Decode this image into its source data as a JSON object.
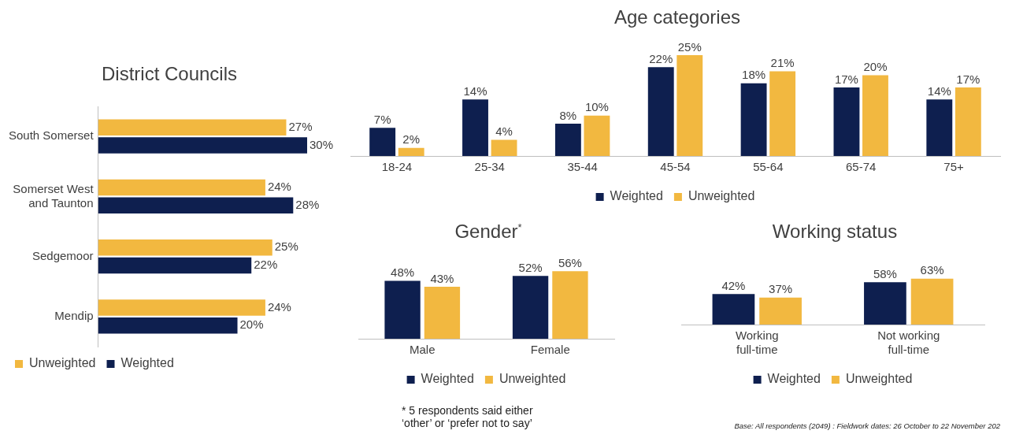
{
  "chart_data": [
    {
      "type": "bar",
      "title": "District Councils",
      "orientation": "horizontal",
      "categories": [
        "South Somerset",
        "Somerset West and Taunton",
        "Sedgemoor",
        "Mendip"
      ],
      "legend": "bottom",
      "series": [
        {
          "name": "Unweighted",
          "color": "#f2b840",
          "values": [
            27,
            24,
            25,
            24
          ],
          "value_labels": [
            "27%",
            "24%",
            "25%",
            "24%"
          ]
        },
        {
          "name": "Weighted",
          "color": "#0e1f4f",
          "values": [
            30,
            28,
            22,
            20
          ],
          "value_labels": [
            "30%",
            "28%",
            "22%",
            "20%"
          ]
        }
      ]
    },
    {
      "type": "bar",
      "title": "Age categories",
      "categories": [
        "18-24",
        "25-34",
        "35-44",
        "45-54",
        "55-64",
        "65-74",
        "75+"
      ],
      "legend": "bottom",
      "series": [
        {
          "name": "Weighted",
          "color": "#0e1f4f",
          "values": [
            7,
            14,
            8,
            22,
            18,
            17,
            14
          ],
          "value_labels": [
            "7%",
            "14%",
            "8%",
            "22%",
            "18%",
            "17%",
            "14%"
          ]
        },
        {
          "name": "Unweighted",
          "color": "#f2b840",
          "values": [
            2,
            4,
            10,
            25,
            21,
            20,
            17
          ],
          "value_labels": [
            "2%",
            "4%",
            "10%",
            "25%",
            "21%",
            "20%",
            "17%"
          ]
        }
      ]
    },
    {
      "type": "bar",
      "title": "Gender$^{*}$",
      "categories": [
        "Male",
        "Female"
      ],
      "legend": "bottom",
      "annotations": [
        "* 5 respondents said either ‘other’ or ‘prefer not to say’"
      ],
      "series": [
        {
          "name": "Weighted",
          "color": "#0e1f4f",
          "values": [
            48,
            52
          ],
          "value_labels": [
            "48%",
            "52%"
          ]
        },
        {
          "name": "Unweighted",
          "color": "#f2b840",
          "values": [
            43,
            56
          ],
          "value_labels": [
            "43%",
            "56%"
          ]
        }
      ]
    },
    {
      "type": "bar",
      "title": "Working status",
      "categories": [
        "Working full-time",
        "Not working full-time"
      ],
      "legend": "bottom",
      "annotations": [
        "Base: All respondents (2049) : Fieldwork dates: 26 October to 22 November 202"
      ],
      "series": [
        {
          "name": "Weighted",
          "color": "#0e1f4f",
          "values": [
            42,
            58
          ],
          "value_labels": [
            "42%",
            "58%"
          ]
        },
        {
          "name": "Unweighted",
          "color": "#f2b840",
          "values": [
            37,
            63
          ],
          "value_labels": [
            "37%",
            "63%"
          ]
        }
      ]
    }
  ]
}
